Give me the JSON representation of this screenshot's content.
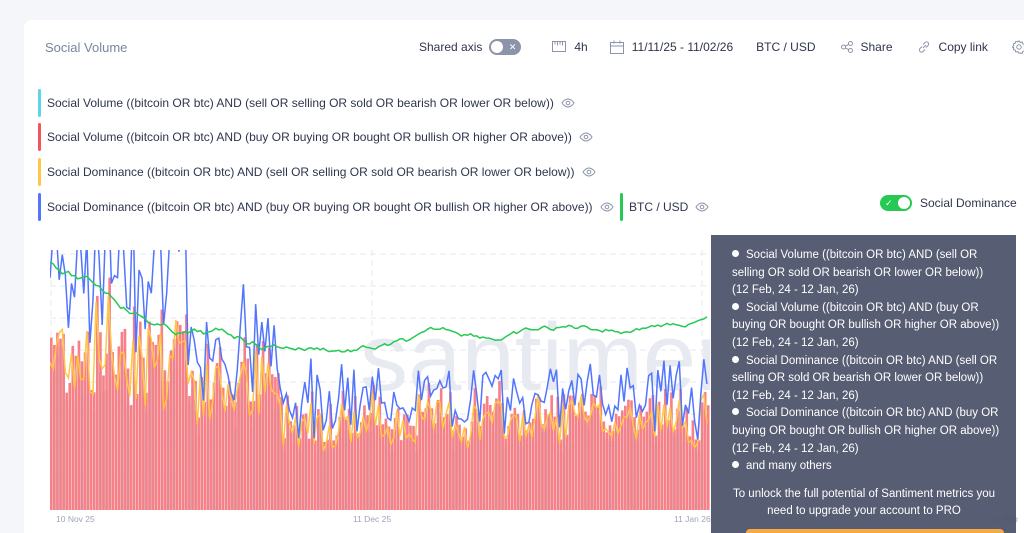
{
  "header": {
    "title": "Social Volume",
    "shared_axis_label": "Shared axis",
    "shared_axis_on": false,
    "interval": "4h",
    "date_range": "11/11/25 - 11/02/26",
    "pair": "BTC / USD",
    "share_label": "Share",
    "copy_link_label": "Copy link"
  },
  "legend": {
    "items": [
      {
        "label": "Social Volume ((bitcoin OR btc) AND (sell OR selling OR sold OR bearish OR lower OR below))",
        "color": "#5ad5ec"
      },
      {
        "label": "Social Volume ((bitcoin OR btc) AND (buy OR buying OR bought OR bullish OR higher OR above))",
        "color": "#f2545b"
      },
      {
        "label": "Social Dominance ((bitcoin OR btc) AND (sell OR selling OR sold OR bearish OR lower OR below))",
        "color": "#ffc746"
      },
      {
        "label": "Social Dominance ((bitcoin OR btc) AND (buy OR buying OR bought OR bullish OR higher OR above))",
        "color": "#5275ff"
      },
      {
        "label": "BTC / USD",
        "color": "#26c953"
      }
    ],
    "social_dominance_toggle_label": "Social Dominance",
    "social_dominance_on": true
  },
  "chart": {
    "watermark": "santiment",
    "x_labels": [
      "10 Nov 25",
      "11 Dec 25",
      "11 Jan 26",
      "11 Feb"
    ]
  },
  "tooltip": {
    "items": [
      "Social Volume ((bitcoin OR btc) AND (sell OR selling OR sold OR bearish OR lower OR below)) (12 Feb, 24 - 12 Jan, 26)",
      "Social Volume ((bitcoin OR btc) AND (buy OR buying OR bought OR bullish OR higher OR above)) (12 Feb, 24 - 12 Jan, 26)",
      "Social Dominance ((bitcoin OR btc) AND (sell OR selling OR sold OR bearish OR lower OR below)) (12 Feb, 24 - 12 Jan, 26)",
      "Social Dominance ((bitcoin OR btc) AND (buy OR buying OR bought OR bullish OR higher OR above)) (12 Feb, 24 - 12 Jan, 26)",
      "and many others"
    ],
    "cta": "To unlock the full potential of Santiment metrics you need to upgrade your account to PRO"
  }
}
